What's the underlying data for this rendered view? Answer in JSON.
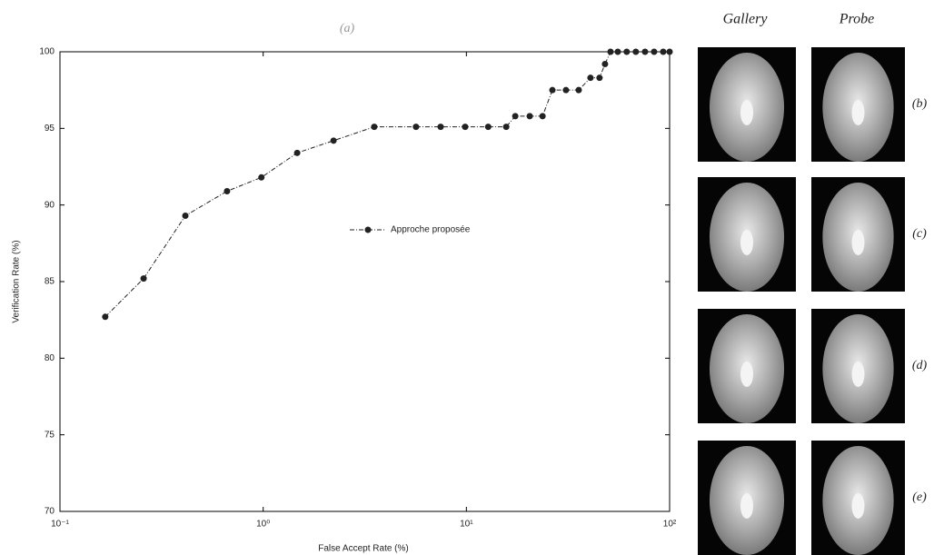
{
  "chart_data": {
    "type": "line",
    "title": "(a)",
    "xlabel": "False Accept Rate (%)",
    "ylabel": "Verification Rate (%)",
    "xscale": "log",
    "xlim": [
      0.1,
      100
    ],
    "ylim": [
      70,
      100
    ],
    "xticks": [
      {
        "value": 0.1,
        "label": "10⁻¹"
      },
      {
        "value": 1,
        "label": "10⁰"
      },
      {
        "value": 10,
        "label": "10¹"
      },
      {
        "value": 100,
        "label": "10²"
      }
    ],
    "yticks": [
      70,
      75,
      80,
      85,
      90,
      95,
      100
    ],
    "legend": "center",
    "series": [
      {
        "name": "Approche proposée",
        "color": "#222222",
        "x": [
          0.167,
          0.258,
          0.414,
          0.664,
          0.98,
          1.47,
          2.22,
          3.52,
          5.65,
          7.47,
          9.86,
          12.8,
          15.7,
          17.4,
          20.5,
          23.7,
          26.5,
          30.9,
          35.7,
          40.8,
          45.2,
          48.1,
          51.2,
          55.6,
          61.5,
          68.2,
          75.7,
          83.9,
          93.0,
          100
        ],
        "values": [
          82.7,
          85.2,
          89.3,
          90.9,
          91.8,
          93.4,
          94.2,
          95.1,
          95.1,
          95.1,
          95.1,
          95.1,
          95.1,
          95.8,
          95.8,
          95.8,
          97.5,
          97.5,
          97.5,
          98.3,
          98.3,
          99.2,
          100,
          100,
          100,
          100,
          100,
          100,
          100,
          100
        ]
      }
    ]
  },
  "panel": {
    "headers": [
      "Gallery",
      "Probe"
    ],
    "row_labels": [
      "(b)",
      "(c)",
      "(d)",
      "(e)"
    ]
  }
}
